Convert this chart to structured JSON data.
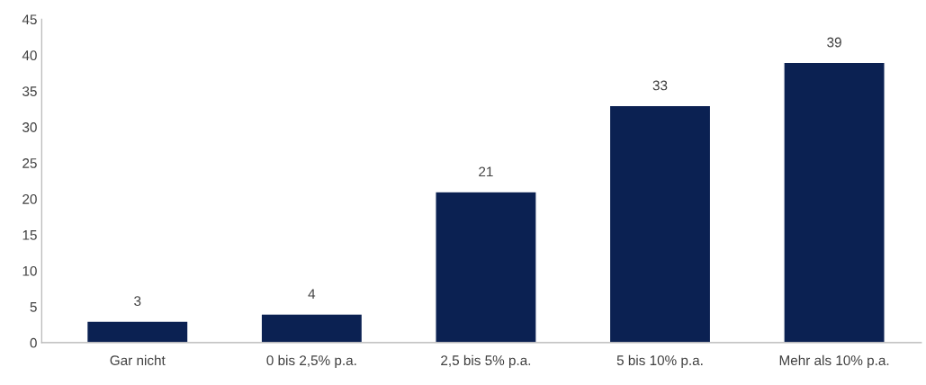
{
  "chart_data": {
    "type": "bar",
    "categories": [
      "Gar nicht",
      "0 bis 2,5% p.a.",
      "2,5 bis 5% p.a.",
      "5 bis 10% p.a.",
      "Mehr als 10% p.a."
    ],
    "values": [
      3,
      4,
      21,
      33,
      39
    ],
    "color": "#0b2152",
    "ylim": [
      0,
      45
    ],
    "yticks": [
      0,
      5,
      10,
      15,
      20,
      25,
      30,
      35,
      40,
      45
    ],
    "grid": false,
    "data_labels": true
  }
}
